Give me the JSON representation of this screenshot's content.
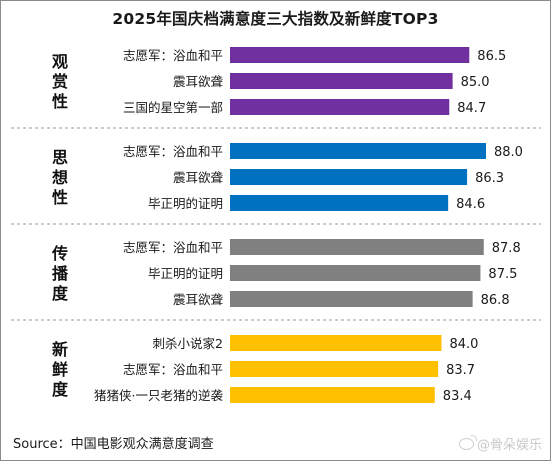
{
  "title": "2025年国庆档满意度三大指数及新鲜度TOP3",
  "source": "Source：中国电影观众满意度调查",
  "watermark": "@骨朵娱乐",
  "chart_data": {
    "type": "bar",
    "orientation": "horizontal",
    "grid": false,
    "groups": [
      {
        "name": "观赏性",
        "color": "#7030A0",
        "categories": [
          "志愿军：浴血和平",
          "震耳欲聋",
          "三国的星空第一部"
        ],
        "values": [
          86.5,
          85.0,
          84.7
        ],
        "labels": [
          "86.5",
          "85.0",
          "84.7"
        ]
      },
      {
        "name": "思想性",
        "color": "#0070C0",
        "categories": [
          "志愿军：浴血和平",
          "震耳欲聋",
          "毕正明的证明"
        ],
        "values": [
          88.0,
          86.3,
          84.6
        ],
        "labels": [
          "88.0",
          "86.3",
          "84.6"
        ]
      },
      {
        "name": "传播度",
        "color": "#808080",
        "categories": [
          "志愿军：浴血和平",
          "毕正明的证明",
          "震耳欲聋"
        ],
        "values": [
          87.8,
          87.5,
          86.8
        ],
        "labels": [
          "87.8",
          "87.5",
          "86.8"
        ]
      },
      {
        "name": "新鲜度",
        "color": "#FFC000",
        "categories": [
          "刺杀小说家2",
          "志愿军：浴血和平",
          "猪猪侠·一只老猪的逆袭"
        ],
        "values": [
          84.0,
          83.7,
          83.4
        ],
        "labels": [
          "84.0",
          "83.7",
          "83.4"
        ]
      }
    ]
  }
}
